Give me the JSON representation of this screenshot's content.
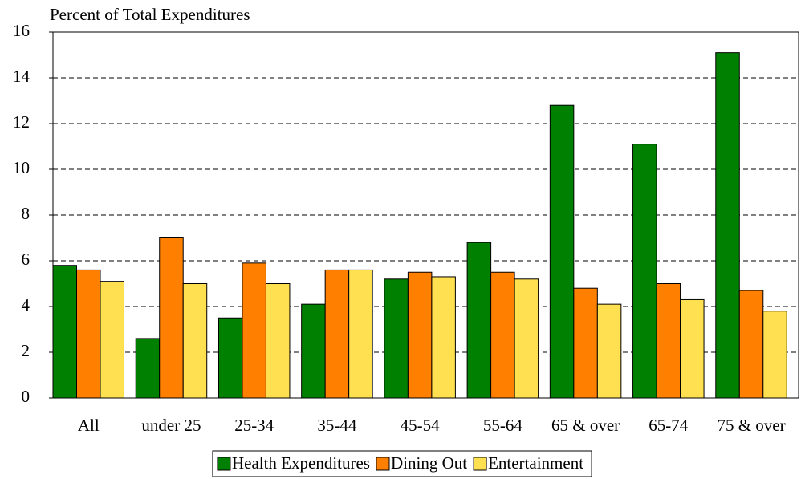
{
  "chart_data": {
    "type": "bar",
    "y_label": "Percent of Total Expenditures",
    "categories": [
      "All",
      "under 25",
      "25-34",
      "35-44",
      "45-54",
      "55-64",
      "65 & over",
      "65-74",
      "75 & over"
    ],
    "series": [
      {
        "name": "Health Expenditures",
        "color": "#008000",
        "values": [
          5.8,
          2.6,
          3.5,
          4.1,
          5.2,
          6.8,
          12.8,
          11.1,
          15.1
        ]
      },
      {
        "name": "Dining Out",
        "color": "#ff8000",
        "values": [
          5.6,
          7.0,
          5.9,
          5.6,
          5.5,
          5.5,
          4.8,
          5.0,
          4.7
        ]
      },
      {
        "name": "Entertainment",
        "color": "#ffe050",
        "values": [
          5.1,
          5.0,
          5.0,
          5.6,
          5.3,
          5.2,
          4.1,
          4.3,
          3.8
        ]
      }
    ],
    "ylim": [
      0,
      16
    ],
    "yticks": [
      0,
      2,
      4,
      6,
      8,
      10,
      12,
      14,
      16
    ],
    "grid": true,
    "legend": "bottom"
  }
}
